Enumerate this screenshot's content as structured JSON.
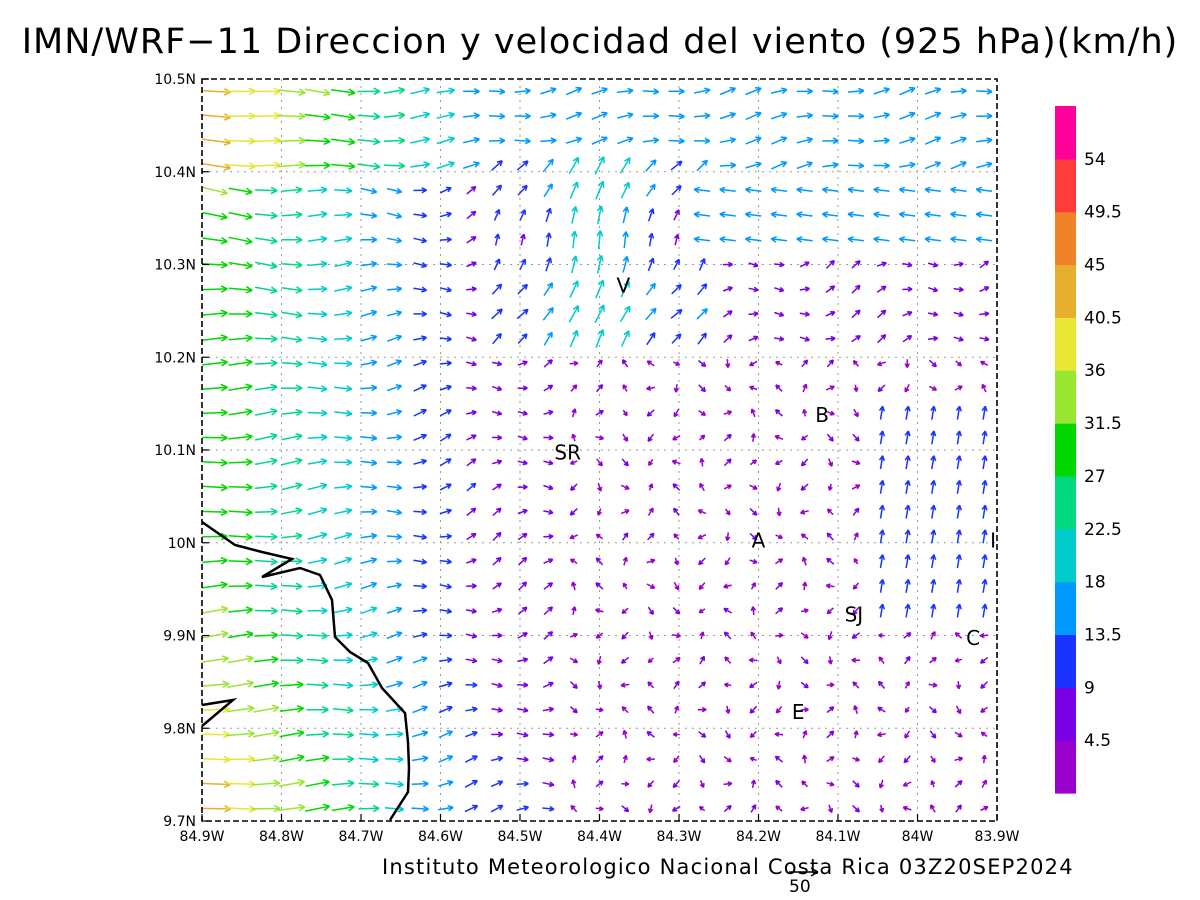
{
  "title": "IMN/WRF−11 Direccion y velocidad del viento (925 hPa)(km/h)",
  "credit": "Instituto Meteorologico Nacional Costa Rica 03Z20SEP2024",
  "reference_vector_label": "50",
  "map": {
    "lon_range": [
      -84.9,
      -83.9
    ],
    "lat_range": [
      9.7,
      10.5
    ],
    "grid": "dotted",
    "x_tick_labels": [
      "84.9W",
      "84.8W",
      "84.7W",
      "84.6W",
      "84.5W",
      "84.4W",
      "84.3W",
      "84.2W",
      "84.1W",
      "84W",
      "83.9W"
    ],
    "y_tick_labels": [
      "9.7N",
      "9.8N",
      "9.9N",
      "10N",
      "10.1N",
      "10.2N",
      "10.3N",
      "10.4N",
      "10.5N"
    ],
    "city_labels": [
      {
        "text": "V",
        "lon": -84.37,
        "lat": 10.27
      },
      {
        "text": "SR",
        "lon": -84.44,
        "lat": 10.09
      },
      {
        "text": "B",
        "lon": -84.12,
        "lat": 10.13
      },
      {
        "text": "A",
        "lon": -84.2,
        "lat": 9.995
      },
      {
        "text": "SJ",
        "lon": -84.08,
        "lat": 9.915
      },
      {
        "text": "C",
        "lon": -83.93,
        "lat": 9.89
      },
      {
        "text": "E",
        "lon": -84.15,
        "lat": 9.81
      },
      {
        "text": "I",
        "lon": -83.905,
        "lat": 9.995
      }
    ]
  },
  "colorbar": {
    "labels": [
      "54",
      "49.5",
      "45",
      "40.5",
      "36",
      "31.5",
      "27",
      "22.5",
      "18",
      "13.5",
      "9",
      "4.5"
    ],
    "colors": [
      "#9900cc",
      "#7a00e6",
      "#1a33ff",
      "#0099ff",
      "#00cccc",
      "#00d982",
      "#00d800",
      "#99e633",
      "#e6e633",
      "#e6b02e",
      "#f08228",
      "#ff3c3c",
      "#ff0099"
    ]
  }
}
